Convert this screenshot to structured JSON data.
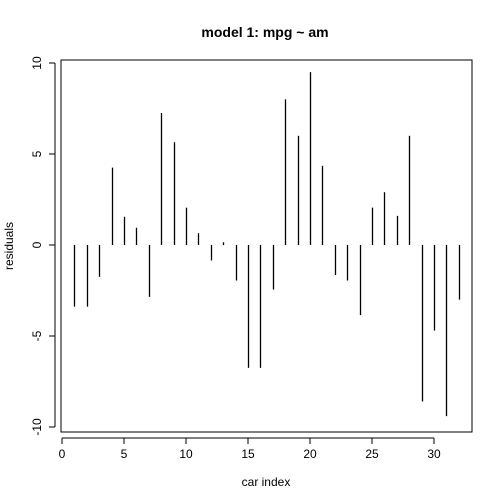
{
  "chart_data": {
    "type": "bar",
    "style": "vertical-line-histogram",
    "title": "model 1: mpg ~ am",
    "xlabel": "car index",
    "ylabel": "residuals",
    "xlim": [
      0,
      33
    ],
    "ylim": [
      -10,
      10
    ],
    "xticks": [
      0,
      5,
      10,
      15,
      20,
      25,
      30
    ],
    "yticks": [
      -10,
      -5,
      0,
      5,
      10
    ],
    "xtick_labels": [
      "0",
      "5",
      "10",
      "15",
      "20",
      "25",
      "30"
    ],
    "ytick_labels": [
      "-10",
      "-5",
      "0",
      "5",
      "10"
    ],
    "grid": false,
    "line_color": "#000000",
    "x": [
      1,
      2,
      3,
      4,
      5,
      6,
      7,
      8,
      9,
      10,
      11,
      12,
      13,
      14,
      15,
      16,
      17,
      18,
      19,
      20,
      21,
      22,
      23,
      24,
      25,
      26,
      27,
      28,
      29,
      30,
      31,
      32
    ],
    "values": [
      -3.39,
      -3.39,
      -1.75,
      4.25,
      1.55,
      0.95,
      -2.85,
      7.25,
      5.65,
      2.05,
      0.65,
      -0.85,
      0.15,
      -1.95,
      -6.75,
      -6.75,
      -2.45,
      8.0,
      6.0,
      9.5,
      4.35,
      -1.65,
      -1.95,
      -3.85,
      2.05,
      2.9,
      1.6,
      6.0,
      -8.6,
      -4.7,
      -9.4,
      -3.0
    ]
  }
}
